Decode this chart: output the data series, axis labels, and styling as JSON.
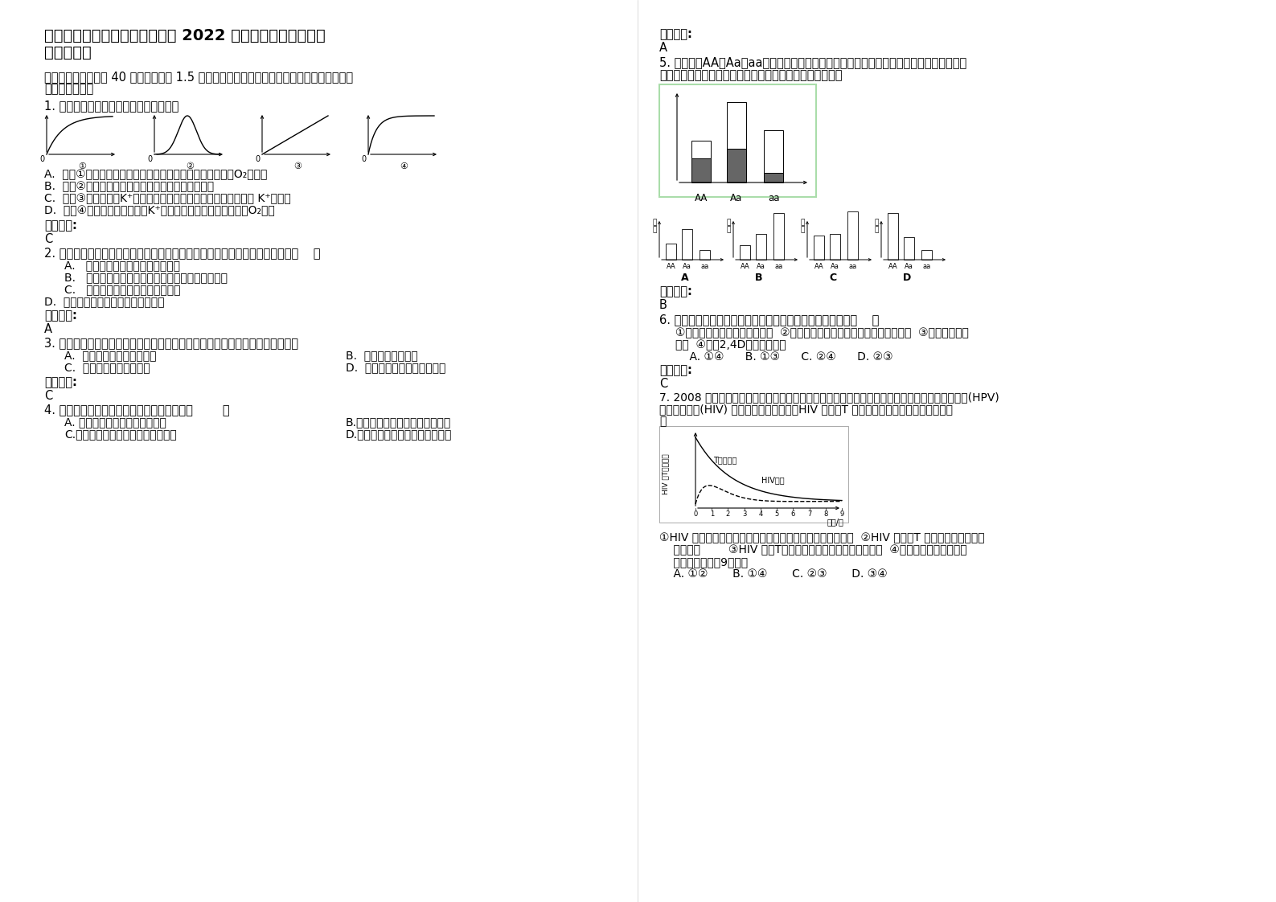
{
  "bg_color": "#ffffff",
  "title1": "辽宁省铁岭市开原第五高级中学 2022 年高二生物下学期期末",
  "title2": "试题含解析",
  "section1": "一、选择题（本题共 40 小题，每小题 1.5 分。在每小题给出的四个选项中，只有一项是符合",
  "section1b": "题目要求的。）",
  "q1": "1. 下列曲线所示的生物学意义，错误的是",
  "q1a": "A.  如图①纵坐标表示细胞内有氧呼吸强度，则横坐标可表示O₂供应量",
  "q1b": "B.  如图②纵坐标表示酶的活性，则横坐标可表示温度",
  "q1c": "C.  如图③纵坐标表示K⁺出入红细胞的速率，则横坐标可表示膜外 K⁺的浓度",
  "q1d": "D.  如图④纵坐标表示植物根对K⁺的吸收速率，则横坐标可表示O₂浓度",
  "ans_label": "参考答案:",
  "q1_ans": "C",
  "q2": "2. 婴幼儿经常尿床，但随着年龄的增长，这种现象会明显减少。以上现象说明（    ）",
  "q2a": "A.   脊髓的生理活动受控于大脑皮层",
  "q2b": "B.   婴幼儿排尿反射的传入神经只能将兴奋传到脊髓",
  "q2c": "C.   婴幼儿排尿不属于神经反射活动",
  "q2d": "D.  婴幼儿在夜间产生的尿液较白天多",
  "q2_ans": "A",
  "q3": "3. 为了实现对草原资源的合理利用，采用划区轮牧的方法，其优点中不正确的是",
  "q3a": "A.  减少牲畜自身能量的消耗",
  "q3b": "B.  有利于牧草的恢复",
  "q3c": "C.  有利于年年增加载畜量",
  "q3d": "D.  有利于充分均匀地采食牧草",
  "q3_ans": "C",
  "q4": "4. 下列过程未体现生物膜信息传递功能的是（        ）",
  "q4a": "A. 食物过咸导致血浆渗透压升高",
  "q4b": "B.抗原刺激引发记忆细胞增殖分化",
  "q4c": "C.胰岛素调节靶细胞对葡萄糖的摄取",
  "q4d": "D.传出神经细胞兴奋引起肌肉收缩",
  "r_ans_label": "参考答案:",
  "r_ans_a": "A",
  "q5": "5. 某种群中AA、Aa、aa的基因型频率如图，其中阴影部分表示繁殖成功率低的个体。则该",
  "q5b": "种群经选择之后，下一代中三种基因型频率的结果最可能是",
  "q5_ans": "B",
  "q6": "6. 下列现象中哪些是由于对植物激素的敏感程度不同造成的（    ）",
  "q6_t1": "①胚芽鞘背光侧比向光侧生长快  ②水平放置的幼苗根向地生长，茎背地生长  ③顶芽比侧芽生",
  "q6_t2": "长快  ④施用2,4D清除田间杂草",
  "q6_opts": "    A. ①④      B. ①③      C. ②④      D. ②③",
  "q6_ans": "C",
  "q7": "7. 2008 年诺贝尔生理学或医学奖分别授予德国和法国科学家以表彰他们在发现了人乳头状瘤病毒(HPV)",
  "q7b": "和艾滋病病毒(HIV) 方面的成就。下图表示HIV 浓度与T 细胞浓度的关系，下列叙述正确的",
  "q7c": "是",
  "q7_t1": "①HIV 最初侵入人体时，人体的免疫系统可以消灭大多数病毒  ②HIV 浓度与T 细胞浓度总表现出负",
  "q7_t2": "    相关关系        ③HIV 攻击T细胞，这不会影响人体液免疫能力  ④艾滋病患者若不进行治",
  "q7_t3": "    疗，大约能生存9年时间",
  "q7_opts": "    A. ①②       B. ①④       C. ②③       D. ③④"
}
